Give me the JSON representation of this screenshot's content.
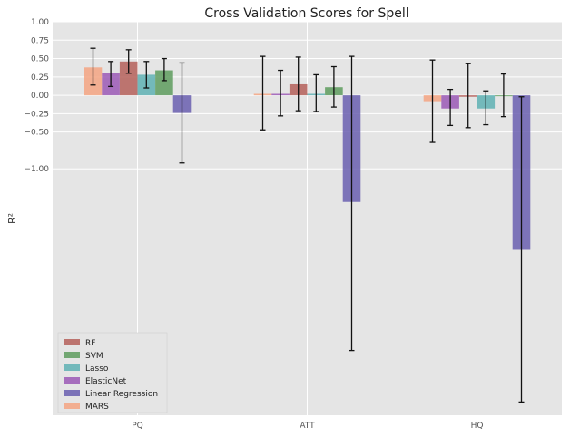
{
  "chart_data": {
    "type": "bar",
    "title": "Cross Validation Scores for Spell",
    "xlabel": "",
    "ylabel": "R²",
    "categories": [
      "PQ",
      "ATT",
      "HQ"
    ],
    "yticks": [
      {
        "value": 1.0,
        "label": "1.00"
      },
      {
        "value": 0.75,
        "label": "0.75"
      },
      {
        "value": 0.5,
        "label": "0.50"
      },
      {
        "value": 0.25,
        "label": "0.25"
      },
      {
        "value": 0.0,
        "label": "0.00"
      },
      {
        "value": -0.25,
        "label": "−0.25"
      },
      {
        "value": -0.5,
        "label": "−0.50"
      },
      {
        "value": -1.0,
        "label": "−1.00"
      }
    ],
    "ylim": [
      -4.35,
      1.0
    ],
    "grid": true,
    "legend_position": "lower-left",
    "series": [
      {
        "name": "MARS",
        "color": "#f4a582",
        "values": [
          0.38,
          0.02,
          -0.08
        ],
        "errors": [
          null,
          null,
          null
        ]
      },
      {
        "name": "ElasticNet",
        "color": "#9b59b6",
        "values": [
          0.3,
          0.02,
          -0.18
        ],
        "errors": [
          null,
          null,
          null
        ]
      },
      {
        "name": "RF",
        "color": "#b5605b",
        "values": [
          0.46,
          0.15,
          -0.02
        ],
        "errors": [
          null,
          null,
          null
        ]
      },
      {
        "name": "Lasso",
        "color": "#5fb2b4",
        "values": [
          0.28,
          0.02,
          -0.18
        ],
        "errors": [
          null,
          null,
          null
        ]
      },
      {
        "name": "SVM",
        "color": "#5e9c5e",
        "values": [
          0.34,
          0.11,
          0.0
        ],
        "errors": [
          null,
          null,
          null
        ]
      },
      {
        "name": "Linear Regression",
        "color": "#6a5fb0",
        "values": [
          -0.24,
          -1.45,
          -2.1
        ],
        "errors": [
          null,
          null,
          null
        ]
      }
    ],
    "error_bars": [
      {
        "category": "PQ",
        "low": 0.14,
        "high": 0.64
      },
      {
        "category": "PQ",
        "low": 0.12,
        "high": 0.46
      },
      {
        "category": "PQ",
        "low": 0.3,
        "high": 0.62
      },
      {
        "category": "PQ",
        "low": 0.1,
        "high": 0.46
      },
      {
        "category": "PQ",
        "low": 0.2,
        "high": 0.5
      },
      {
        "category": "PQ",
        "low": -0.92,
        "high": 0.44
      },
      {
        "category": "ATT",
        "low": -0.47,
        "high": 0.53
      },
      {
        "category": "ATT",
        "low": -0.28,
        "high": 0.34
      },
      {
        "category": "ATT",
        "low": -0.21,
        "high": 0.52
      },
      {
        "category": "ATT",
        "low": -0.22,
        "high": 0.28
      },
      {
        "category": "ATT",
        "low": -0.16,
        "high": 0.39
      },
      {
        "category": "ATT",
        "low": -3.47,
        "high": 0.53
      },
      {
        "category": "HQ",
        "low": -0.64,
        "high": 0.48
      },
      {
        "category": "HQ",
        "low": -0.41,
        "high": 0.08
      },
      {
        "category": "HQ",
        "low": -0.44,
        "high": 0.43
      },
      {
        "category": "HQ",
        "low": -0.4,
        "high": 0.06
      },
      {
        "category": "HQ",
        "low": -0.29,
        "high": 0.29
      },
      {
        "category": "HQ",
        "low": -4.17,
        "high": -0.02
      }
    ],
    "legend_order": [
      "RF",
      "SVM",
      "Lasso",
      "ElasticNet",
      "Linear Regression",
      "MARS"
    ]
  }
}
